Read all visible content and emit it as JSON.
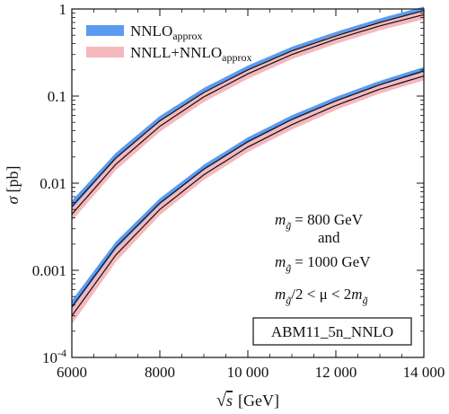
{
  "chart_data": {
    "type": "line",
    "title": "",
    "xlabel": "√s [GeV]",
    "ylabel": "σ [pb]",
    "xlim": [
      6000,
      14000
    ],
    "ylim": [
      0.0001,
      1
    ],
    "yscale": "log",
    "x_ticks": [
      6000,
      8000,
      10000,
      12000,
      14000
    ],
    "x_tick_labels": [
      "6000",
      "8000",
      "10 000",
      "12 000",
      "14 000"
    ],
    "y_ticks": [
      0.0001,
      0.001,
      0.01,
      0.1,
      1
    ],
    "y_tick_labels": [
      "10^-4",
      "0.001",
      "0.01",
      "0.1",
      "1"
    ],
    "grid": false,
    "legend": {
      "placement": "top-left",
      "entries": [
        {
          "label": "NNLO",
          "sub": "approx",
          "color": "#5b9bf0"
        },
        {
          "label": "NNLL+NNLO",
          "sub": "approx",
          "color": "#f5b8bc"
        }
      ]
    },
    "series": [
      {
        "mass": 800,
        "x": [
          6000,
          7000,
          8000,
          9000,
          10000,
          11000,
          12000,
          13000,
          14000
        ],
        "nnlo": [
          0.0054,
          0.0195,
          0.052,
          0.11,
          0.2,
          0.33,
          0.49,
          0.7,
          0.96
        ],
        "nnlo_band": [
          0.0009,
          0.0028,
          0.007,
          0.014,
          0.024,
          0.038,
          0.056,
          0.078,
          0.105
        ],
        "nnll": [
          0.0044,
          0.0165,
          0.045,
          0.098,
          0.18,
          0.3,
          0.45,
          0.64,
          0.86
        ],
        "nnll_band": [
          0.0007,
          0.0024,
          0.006,
          0.0125,
          0.022,
          0.035,
          0.052,
          0.072,
          0.097
        ]
      },
      {
        "mass": 1000,
        "x": [
          6000,
          7000,
          8000,
          9000,
          10000,
          11000,
          12000,
          13000,
          14000
        ],
        "nnlo": [
          0.00038,
          0.00185,
          0.0059,
          0.0145,
          0.03,
          0.054,
          0.088,
          0.135,
          0.195
        ],
        "nnlo_band": [
          7e-05,
          0.00028,
          0.0008,
          0.0018,
          0.0036,
          0.0062,
          0.0098,
          0.0145,
          0.0205
        ],
        "nnll": [
          0.0003,
          0.0015,
          0.005,
          0.0125,
          0.026,
          0.047,
          0.078,
          0.12,
          0.17
        ],
        "nnll_band": [
          6e-05,
          0.00025,
          0.0007,
          0.0016,
          0.0032,
          0.0056,
          0.0088,
          0.013,
          0.0185
        ]
      }
    ],
    "annotations": {
      "m_line1": "= 800 GeV",
      "and": "and",
      "m_line2": "= 1000 GeV",
      "scale_mid": "/2 < μ < 2",
      "m_symbol": "m",
      "g_sub": "g̃"
    },
    "box_label": "ABM11_5n_NNLO"
  }
}
